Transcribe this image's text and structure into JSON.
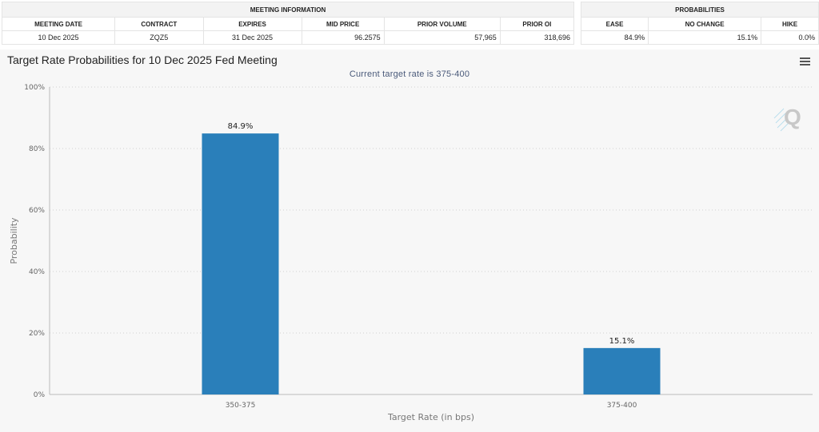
{
  "meeting_info": {
    "group_title": "MEETING INFORMATION",
    "headers": [
      "MEETING DATE",
      "CONTRACT",
      "EXPIRES",
      "MID PRICE",
      "PRIOR VOLUME",
      "PRIOR OI"
    ],
    "row": [
      "10 Dec 2025",
      "ZQZ5",
      "31 Dec 2025",
      "96.2575",
      "57,965",
      "318,696"
    ]
  },
  "probabilities": {
    "group_title": "PROBABILITIES",
    "headers": [
      "EASE",
      "NO CHANGE",
      "HIKE"
    ],
    "row": [
      "84.9%",
      "15.1%",
      "0.0%"
    ]
  },
  "chart_panel": {
    "title": "Target Rate Probabilities for 10 Dec 2025 Fed Meeting",
    "subtitle": "Current target rate is 375-400",
    "menu_icon": "hamburger-menu-icon",
    "watermark_icon": "quikstrike-q-logo"
  },
  "chart_data": {
    "type": "bar",
    "title": "Target Rate Probabilities for 10 Dec 2025 Fed Meeting",
    "subtitle": "Current target rate is 375-400",
    "categories": [
      "350-375",
      "375-400"
    ],
    "values": [
      84.9,
      15.1
    ],
    "data_labels": [
      "84.9%",
      "15.1%"
    ],
    "xlabel": "Target Rate (in bps)",
    "ylabel": "Probability",
    "ylim": [
      0,
      100
    ],
    "yticks": [
      0,
      20,
      40,
      60,
      80,
      100
    ],
    "ytick_labels": [
      "0%",
      "20%",
      "40%",
      "60%",
      "80%",
      "100%"
    ],
    "grid": true,
    "legend": "none",
    "bar_color": "#2a7fba"
  }
}
